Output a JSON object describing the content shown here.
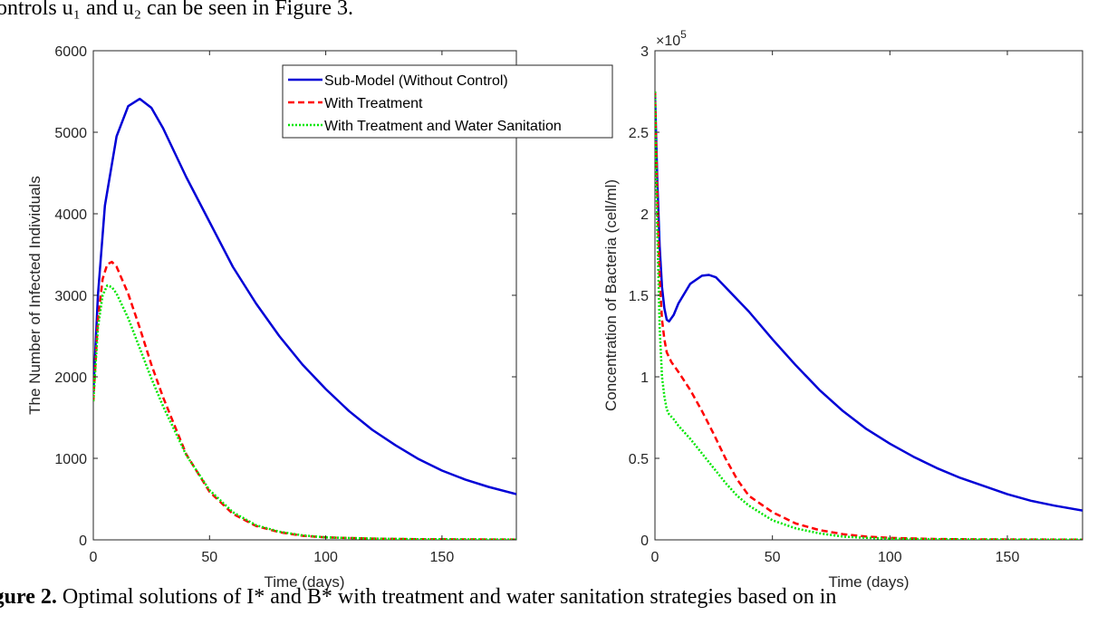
{
  "page": {
    "top_text": "ontrols u₁ and u₂ can be seen in Figure 3.",
    "caption_label": "igure 2.",
    "caption_text": " Optimal solutions of I* and B* with treatment and water sanitation strategies based on in"
  },
  "colors": {
    "blue": "#0000d6",
    "red": "#ff0000",
    "green": "#00e600",
    "axis": "#262626"
  },
  "chart_data": [
    {
      "type": "line",
      "xlabel": "Time (days)",
      "ylabel": "The Number of Infected Individuals",
      "xlim": [
        0,
        182
      ],
      "ylim": [
        0,
        6000
      ],
      "xticks": [
        0,
        50,
        100,
        150
      ],
      "xtick_labels": [
        "0",
        "50",
        "100",
        "150"
      ],
      "yticks": [
        0,
        1000,
        2000,
        3000,
        4000,
        5000,
        6000
      ],
      "ytick_labels": [
        "0",
        "1000",
        "2000",
        "3000",
        "4000",
        "5000",
        "6000"
      ],
      "legend": {
        "placement": "top-right",
        "entries": [
          "Sub-Model (Without Control)",
          "With Treatment",
          "With Treatment and Water Sanitation"
        ]
      },
      "series": [
        {
          "name": "Sub-Model (Without Control)",
          "style": "solid",
          "color": "#0000d6",
          "x": [
            0,
            2,
            5,
            10,
            15,
            20,
            25,
            30,
            40,
            50,
            60,
            70,
            80,
            90,
            100,
            110,
            120,
            130,
            140,
            150,
            160,
            170,
            182
          ],
          "y": [
            1800,
            3000,
            4100,
            4950,
            5320,
            5410,
            5300,
            5050,
            4450,
            3900,
            3350,
            2900,
            2500,
            2150,
            1850,
            1580,
            1350,
            1160,
            990,
            850,
            740,
            650,
            560
          ]
        },
        {
          "name": "With Treatment",
          "style": "dashed",
          "color": "#ff0000",
          "x": [
            0,
            2,
            4,
            6,
            8,
            10,
            15,
            20,
            25,
            30,
            40,
            50,
            60,
            70,
            80,
            90,
            100,
            120,
            140,
            160,
            182
          ],
          "y": [
            1700,
            2700,
            3200,
            3380,
            3410,
            3350,
            3020,
            2600,
            2150,
            1750,
            1050,
            590,
            320,
            170,
            95,
            50,
            30,
            15,
            8,
            5,
            3
          ]
        },
        {
          "name": "With Treatment and Water Sanitation",
          "style": "dotted",
          "color": "#00e600",
          "x": [
            0,
            2,
            4,
            6,
            8,
            10,
            15,
            20,
            25,
            30,
            40,
            50,
            60,
            70,
            80,
            90,
            100,
            120,
            140,
            160,
            182
          ],
          "y": [
            1700,
            2600,
            3000,
            3120,
            3100,
            3020,
            2720,
            2350,
            1980,
            1640,
            1040,
            610,
            340,
            180,
            100,
            55,
            30,
            15,
            8,
            5,
            3
          ]
        }
      ]
    },
    {
      "type": "line",
      "xlabel": "Time (days)",
      "ylabel": "Concentration of Bacteria (cell/ml)",
      "y_multiplier": "×10",
      "y_multiplier_exp": "5",
      "xlim": [
        0,
        182
      ],
      "ylim": [
        0,
        3
      ],
      "xticks": [
        0,
        50,
        100,
        150
      ],
      "xtick_labels": [
        "0",
        "50",
        "100",
        "150"
      ],
      "yticks": [
        0,
        0.5,
        1,
        1.5,
        2,
        2.5,
        3
      ],
      "ytick_labels": [
        "0",
        "0.5",
        "1",
        "1.5",
        "2",
        "2.5",
        "3"
      ],
      "series": [
        {
          "name": "Sub-Model (Without Control)",
          "style": "solid",
          "color": "#0000d6",
          "x": [
            0,
            1,
            2,
            3,
            4,
            5,
            6,
            8,
            10,
            15,
            20,
            23,
            26,
            30,
            40,
            50,
            60,
            70,
            80,
            90,
            100,
            110,
            120,
            130,
            140,
            150,
            160,
            170,
            182
          ],
          "y": [
            2.75,
            2.2,
            1.8,
            1.55,
            1.42,
            1.35,
            1.34,
            1.38,
            1.45,
            1.57,
            1.62,
            1.625,
            1.61,
            1.55,
            1.4,
            1.23,
            1.07,
            0.92,
            0.79,
            0.68,
            0.59,
            0.51,
            0.44,
            0.38,
            0.33,
            0.28,
            0.24,
            0.21,
            0.18
          ]
        },
        {
          "name": "With Treatment",
          "style": "dashed",
          "color": "#ff0000",
          "x": [
            0,
            1,
            2,
            3,
            4,
            5,
            7,
            10,
            15,
            20,
            25,
            30,
            35,
            40,
            50,
            60,
            70,
            80,
            90,
            100,
            120,
            140,
            160,
            182
          ],
          "y": [
            2.75,
            2.1,
            1.6,
            1.35,
            1.23,
            1.15,
            1.09,
            1.03,
            0.92,
            0.79,
            0.65,
            0.5,
            0.37,
            0.27,
            0.17,
            0.1,
            0.06,
            0.035,
            0.02,
            0.012,
            0.005,
            0.003,
            0.002,
            0.001
          ]
        },
        {
          "name": "With Treatment and Water Sanitation",
          "style": "dotted",
          "color": "#00e600",
          "x": [
            0,
            1,
            2,
            3,
            4,
            5,
            6,
            8,
            10,
            15,
            20,
            25,
            30,
            35,
            40,
            50,
            60,
            70,
            80,
            90,
            100,
            120,
            140,
            160,
            182
          ],
          "y": [
            2.75,
            1.9,
            1.3,
            1.0,
            0.88,
            0.8,
            0.77,
            0.74,
            0.7,
            0.62,
            0.53,
            0.44,
            0.35,
            0.27,
            0.21,
            0.12,
            0.07,
            0.04,
            0.02,
            0.012,
            0.007,
            0.004,
            0.002,
            0.001,
            0.001
          ]
        }
      ]
    }
  ]
}
